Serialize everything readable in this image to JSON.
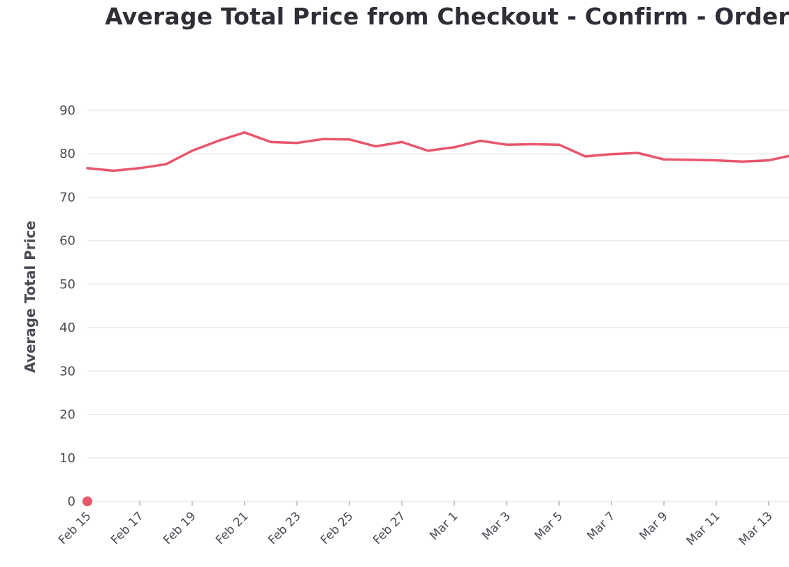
{
  "chart_data": {
    "type": "line",
    "title": "Average Total Price from Checkout - Confirm - Order",
    "xlabel": "",
    "ylabel": "Average Total Price",
    "ylim": [
      0,
      90
    ],
    "y_ticks": [
      0,
      10,
      20,
      30,
      40,
      50,
      60,
      70,
      80,
      90
    ],
    "x_tick_labels": [
      "Feb 15",
      "Feb 17",
      "Feb 19",
      "Feb 21",
      "Feb 23",
      "Feb 25",
      "Feb 27",
      "Mar 1",
      "Mar 3",
      "Mar 5",
      "Mar 7",
      "Mar 9",
      "Mar 11",
      "Mar 13"
    ],
    "grid": "horizontal",
    "color": "#e8566c",
    "series": [
      {
        "x": [
          "Feb 15",
          "Feb 16",
          "Feb 17",
          "Feb 18",
          "Feb 19",
          "Feb 20",
          "Feb 21",
          "Feb 22",
          "Feb 23",
          "Feb 24",
          "Feb 25",
          "Feb 26",
          "Feb 27",
          "Feb 28",
          "Mar 1",
          "Mar 2",
          "Mar 3",
          "Mar 4",
          "Mar 5",
          "Mar 6",
          "Mar 7",
          "Mar 8",
          "Mar 9",
          "Mar 10",
          "Mar 11",
          "Mar 12",
          "Mar 13",
          "Mar 14"
        ],
        "values": [
          76.7,
          76.1,
          76.7,
          77.6,
          80.7,
          83.0,
          84.9,
          82.7,
          82.5,
          83.4,
          83.3,
          81.7,
          82.7,
          80.7,
          81.5,
          83.0,
          82.1,
          82.2,
          82.1,
          79.4,
          79.9,
          80.2,
          78.7,
          78.6,
          78.5,
          78.2,
          78.5,
          79.8
        ]
      }
    ],
    "marker_point": {
      "x": "Feb 15",
      "y": 0
    }
  }
}
